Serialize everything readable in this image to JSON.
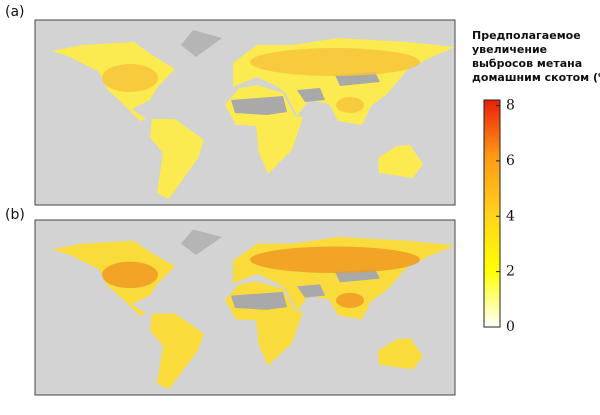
{
  "panels": [
    {
      "label": "(a)"
    },
    {
      "label": "(b)"
    }
  ],
  "legend": {
    "title_lines": [
      "Предполагаемое",
      "увеличение",
      "выбросов метана",
      "домашним скотом (%)"
    ],
    "lim": [
      0,
      8.2
    ],
    "ticks": [
      0,
      2,
      4,
      6,
      8
    ],
    "colors": [
      "#ffffff",
      "#ffff00",
      "#ffd21e",
      "#ff9a14",
      "#e8200c"
    ]
  }
}
